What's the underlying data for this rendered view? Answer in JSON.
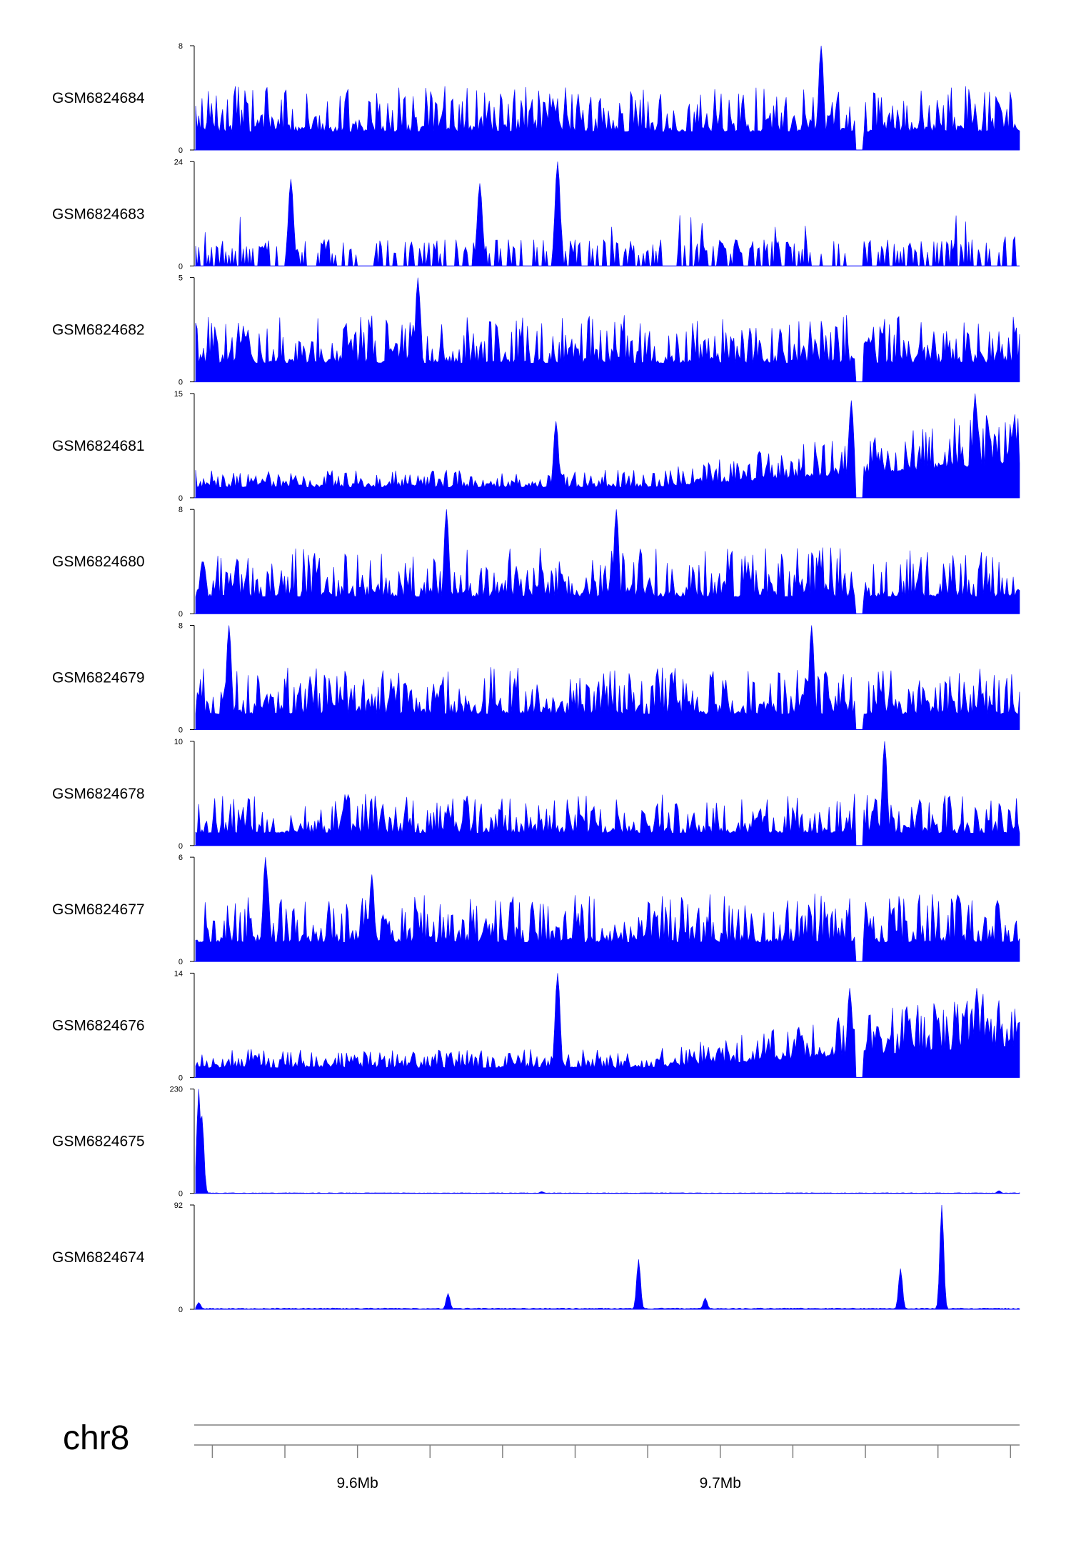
{
  "colors": {
    "signal": "#0000ff",
    "axis": "#000000",
    "ruler": "#808080"
  },
  "chart_data": {
    "type": "area",
    "title": "",
    "chromosome": "chr8",
    "xlim_bp": [
      9555000,
      9782500
    ],
    "x_ticks_bp": [
      9560000,
      9580000,
      9600000,
      9620000,
      9640000,
      9660000,
      9680000,
      9700000,
      9720000,
      9740000,
      9760000,
      9780000
    ],
    "x_tick_labels": [
      {
        "bp": 9600000,
        "label": "9.6Mb"
      },
      {
        "bp": 9700000,
        "label": "9.7Mb"
      }
    ],
    "tracks": [
      {
        "name": "GSM6824684",
        "ymin_label": "0",
        "ymax_label": "8",
        "ylim": [
          0,
          8
        ],
        "pattern": "noisy",
        "baseline": 1.4,
        "spread": 3.5,
        "peaks": [
          {
            "pos": 0.76,
            "value": 8
          }
        ]
      },
      {
        "name": "GSM6824683",
        "ymin_label": "0",
        "ymax_label": "24",
        "ylim": [
          0,
          24
        ],
        "pattern": "sparse",
        "baseline": 2.5,
        "spread": 6,
        "peaks": [
          {
            "pos": 0.44,
            "value": 24
          },
          {
            "pos": 0.115,
            "value": 20
          },
          {
            "pos": 0.345,
            "value": 19
          }
        ]
      },
      {
        "name": "GSM6824682",
        "ymin_label": "0",
        "ymax_label": "5",
        "ylim": [
          0,
          5
        ],
        "pattern": "noisy",
        "baseline": 0.9,
        "spread": 2.3,
        "peaks": [
          {
            "pos": 0.27,
            "value": 5
          }
        ]
      },
      {
        "name": "GSM6824681",
        "ymin_label": "0",
        "ymax_label": "15",
        "ylim": [
          0,
          15
        ],
        "pattern": "ramp",
        "baseline": 1.5,
        "spread": 2.5,
        "peaks": [
          {
            "pos": 0.437,
            "value": 11
          },
          {
            "pos": 0.795,
            "value": 14
          },
          {
            "pos": 0.947,
            "value": 15
          }
        ]
      },
      {
        "name": "GSM6824680",
        "ymin_label": "0",
        "ymax_label": "8",
        "ylim": [
          0,
          8
        ],
        "pattern": "noisy",
        "baseline": 1.3,
        "spread": 3.8,
        "peaks": [
          {
            "pos": 0.305,
            "value": 8
          },
          {
            "pos": 0.51,
            "value": 8
          }
        ]
      },
      {
        "name": "GSM6824679",
        "ymin_label": "0",
        "ymax_label": "8",
        "ylim": [
          0,
          8
        ],
        "pattern": "noisy",
        "baseline": 1.2,
        "spread": 3.6,
        "peaks": [
          {
            "pos": 0.04,
            "value": 8
          },
          {
            "pos": 0.747,
            "value": 8
          }
        ]
      },
      {
        "name": "GSM6824678",
        "ymin_label": "0",
        "ymax_label": "10",
        "ylim": [
          0,
          10
        ],
        "pattern": "noisy",
        "baseline": 1.2,
        "spread": 3.8,
        "peaks": [
          {
            "pos": 0.836,
            "value": 10
          }
        ]
      },
      {
        "name": "GSM6824677",
        "ymin_label": "0",
        "ymax_label": "6",
        "ylim": [
          0,
          6
        ],
        "pattern": "noisy",
        "baseline": 1.1,
        "spread": 2.8,
        "peaks": [
          {
            "pos": 0.085,
            "value": 6
          },
          {
            "pos": 0.213,
            "value": 5
          }
        ]
      },
      {
        "name": "GSM6824676",
        "ymin_label": "0",
        "ymax_label": "14",
        "ylim": [
          0,
          14
        ],
        "pattern": "ramp",
        "baseline": 1.3,
        "spread": 2.5,
        "peaks": [
          {
            "pos": 0.44,
            "value": 14
          },
          {
            "pos": 0.793,
            "value": 12
          },
          {
            "pos": 0.948,
            "value": 12
          }
        ]
      },
      {
        "name": "GSM6824675",
        "ymin_label": "0",
        "ymax_label": "230",
        "ylim": [
          0,
          230
        ],
        "pattern": "flat",
        "baseline": 1.2,
        "spread": 1,
        "peaks": [
          {
            "pos": 0.004,
            "value": 230
          },
          {
            "pos": 0.007,
            "value": 170
          },
          {
            "pos": 0.42,
            "value": 4
          },
          {
            "pos": 0.974,
            "value": 6
          }
        ]
      },
      {
        "name": "GSM6824674",
        "ymin_label": "0",
        "ymax_label": "92",
        "ylim": [
          0,
          92
        ],
        "pattern": "flat",
        "baseline": 1.0,
        "spread": 1.5,
        "peaks": [
          {
            "pos": 0.004,
            "value": 6
          },
          {
            "pos": 0.307,
            "value": 14
          },
          {
            "pos": 0.538,
            "value": 44
          },
          {
            "pos": 0.619,
            "value": 10
          },
          {
            "pos": 0.856,
            "value": 36
          },
          {
            "pos": 0.906,
            "value": 92
          }
        ]
      }
    ]
  }
}
